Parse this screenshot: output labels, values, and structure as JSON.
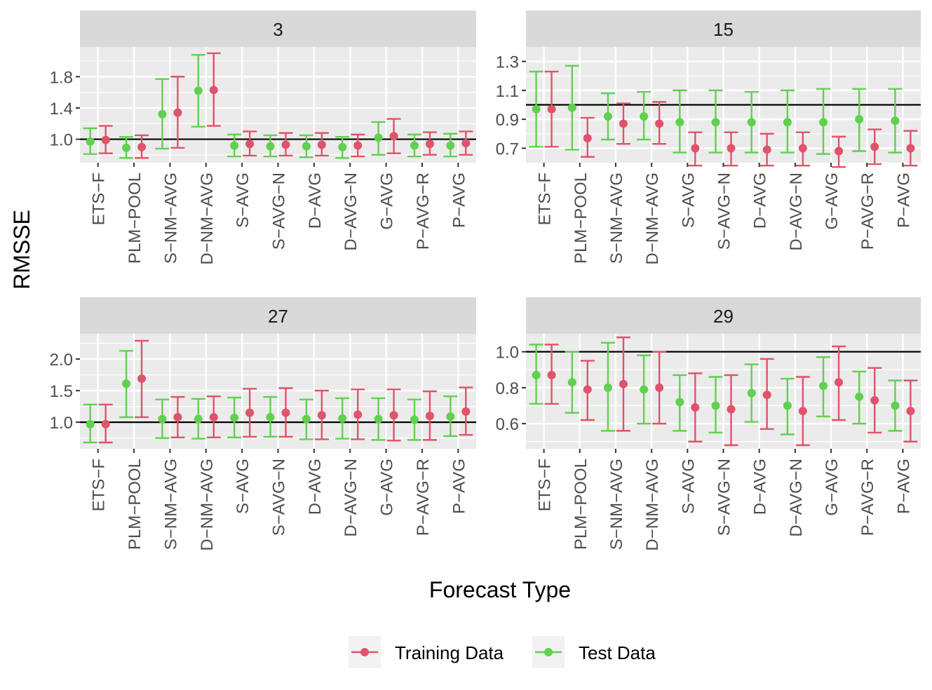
{
  "chart_data": {
    "type": "errorbar-facets",
    "ylabel": "RMSSE",
    "xlabel": "Forecast Type",
    "categories": [
      "ETS−F",
      "PLM−POOL",
      "S−NM−AVG",
      "D−NM−AVG",
      "S−AVG",
      "S−AVG−N",
      "D−AVG",
      "D−AVG−N",
      "G−AVG",
      "P−AVG−R",
      "P−AVG"
    ],
    "reference_line": 1.0,
    "legend": {
      "position": "bottom",
      "items": [
        {
          "key": "train",
          "label": "Training Data",
          "color": "#DF536B"
        },
        {
          "key": "test",
          "label": "Test Data",
          "color": "#61D04F"
        }
      ]
    },
    "facets": [
      {
        "title": "3",
        "ylim": [
          0.7,
          2.18
        ],
        "yticks": [
          1.0,
          1.4,
          1.8
        ],
        "ytick_labels": [
          "1.0",
          "1.4",
          "1.8"
        ],
        "test": [
          {
            "y": 0.97,
            "lo": 0.81,
            "hi": 1.14
          },
          {
            "y": 0.89,
            "lo": 0.76,
            "hi": 1.03
          },
          {
            "y": 1.32,
            "lo": 0.88,
            "hi": 1.77
          },
          {
            "y": 1.62,
            "lo": 1.16,
            "hi": 2.08
          },
          {
            "y": 0.92,
            "lo": 0.78,
            "hi": 1.06
          },
          {
            "y": 0.91,
            "lo": 0.78,
            "hi": 1.05
          },
          {
            "y": 0.91,
            "lo": 0.77,
            "hi": 1.05
          },
          {
            "y": 0.9,
            "lo": 0.76,
            "hi": 1.03
          },
          {
            "y": 1.02,
            "lo": 0.8,
            "hi": 1.22
          },
          {
            "y": 0.92,
            "lo": 0.78,
            "hi": 1.06
          },
          {
            "y": 0.92,
            "lo": 0.78,
            "hi": 1.07
          }
        ],
        "train": [
          {
            "y": 0.99,
            "lo": 0.82,
            "hi": 1.17
          },
          {
            "y": 0.9,
            "lo": 0.76,
            "hi": 1.05
          },
          {
            "y": 1.34,
            "lo": 0.89,
            "hi": 1.8
          },
          {
            "y": 1.63,
            "lo": 1.17,
            "hi": 2.1
          },
          {
            "y": 0.94,
            "lo": 0.79,
            "hi": 1.1
          },
          {
            "y": 0.93,
            "lo": 0.79,
            "hi": 1.08
          },
          {
            "y": 0.93,
            "lo": 0.79,
            "hi": 1.08
          },
          {
            "y": 0.92,
            "lo": 0.78,
            "hi": 1.06
          },
          {
            "y": 1.04,
            "lo": 0.82,
            "hi": 1.26
          },
          {
            "y": 0.94,
            "lo": 0.8,
            "hi": 1.09
          },
          {
            "y": 0.95,
            "lo": 0.8,
            "hi": 1.1
          }
        ]
      },
      {
        "title": "15",
        "ylim": [
          0.6,
          1.4
        ],
        "yticks": [
          0.7,
          0.9,
          1.1,
          1.3
        ],
        "ytick_labels": [
          "0.7",
          "0.9",
          "1.1",
          "1.3"
        ],
        "test": [
          {
            "y": 0.97,
            "lo": 0.71,
            "hi": 1.23
          },
          {
            "y": 0.98,
            "lo": 0.69,
            "hi": 1.27
          },
          {
            "y": 0.92,
            "lo": 0.76,
            "hi": 1.08
          },
          {
            "y": 0.92,
            "lo": 0.76,
            "hi": 1.09
          },
          {
            "y": 0.88,
            "lo": 0.67,
            "hi": 1.1
          },
          {
            "y": 0.88,
            "lo": 0.67,
            "hi": 1.1
          },
          {
            "y": 0.88,
            "lo": 0.67,
            "hi": 1.09
          },
          {
            "y": 0.88,
            "lo": 0.67,
            "hi": 1.1
          },
          {
            "y": 0.88,
            "lo": 0.66,
            "hi": 1.11
          },
          {
            "y": 0.9,
            "lo": 0.68,
            "hi": 1.11
          },
          {
            "y": 0.89,
            "lo": 0.67,
            "hi": 1.11
          }
        ],
        "train": [
          {
            "y": 0.97,
            "lo": 0.71,
            "hi": 1.23
          },
          {
            "y": 0.77,
            "lo": 0.64,
            "hi": 0.91
          },
          {
            "y": 0.87,
            "lo": 0.73,
            "hi": 1.01
          },
          {
            "y": 0.87,
            "lo": 0.73,
            "hi": 1.02
          },
          {
            "y": 0.7,
            "lo": 0.58,
            "hi": 0.81
          },
          {
            "y": 0.7,
            "lo": 0.58,
            "hi": 0.81
          },
          {
            "y": 0.69,
            "lo": 0.58,
            "hi": 0.8
          },
          {
            "y": 0.7,
            "lo": 0.58,
            "hi": 0.81
          },
          {
            "y": 0.68,
            "lo": 0.57,
            "hi": 0.78
          },
          {
            "y": 0.71,
            "lo": 0.59,
            "hi": 0.83
          },
          {
            "y": 0.7,
            "lo": 0.58,
            "hi": 0.82
          }
        ]
      },
      {
        "title": "27",
        "ylim": [
          0.58,
          2.4
        ],
        "yticks": [
          1.0,
          1.5,
          2.0
        ],
        "ytick_labels": [
          "1.0",
          "1.5",
          "2.0"
        ],
        "test": [
          {
            "y": 0.97,
            "lo": 0.68,
            "hi": 1.28
          },
          {
            "y": 1.61,
            "lo": 1.08,
            "hi": 2.13
          },
          {
            "y": 1.05,
            "lo": 0.75,
            "hi": 1.36
          },
          {
            "y": 1.05,
            "lo": 0.74,
            "hi": 1.37
          },
          {
            "y": 1.07,
            "lo": 0.76,
            "hi": 1.39
          },
          {
            "y": 1.08,
            "lo": 0.77,
            "hi": 1.4
          },
          {
            "y": 1.05,
            "lo": 0.73,
            "hi": 1.36
          },
          {
            "y": 1.06,
            "lo": 0.74,
            "hi": 1.38
          },
          {
            "y": 1.05,
            "lo": 0.72,
            "hi": 1.38
          },
          {
            "y": 1.04,
            "lo": 0.72,
            "hi": 1.36
          },
          {
            "y": 1.09,
            "lo": 0.78,
            "hi": 1.41
          }
        ],
        "train": [
          {
            "y": 0.97,
            "lo": 0.68,
            "hi": 1.28
          },
          {
            "y": 1.69,
            "lo": 1.08,
            "hi": 2.29
          },
          {
            "y": 1.08,
            "lo": 0.76,
            "hi": 1.4
          },
          {
            "y": 1.08,
            "lo": 0.76,
            "hi": 1.41
          },
          {
            "y": 1.15,
            "lo": 0.77,
            "hi": 1.53
          },
          {
            "y": 1.15,
            "lo": 0.77,
            "hi": 1.54
          },
          {
            "y": 1.11,
            "lo": 0.73,
            "hi": 1.5
          },
          {
            "y": 1.12,
            "lo": 0.73,
            "hi": 1.52
          },
          {
            "y": 1.11,
            "lo": 0.71,
            "hi": 1.52
          },
          {
            "y": 1.1,
            "lo": 0.72,
            "hi": 1.49
          },
          {
            "y": 1.17,
            "lo": 0.8,
            "hi": 1.55
          }
        ]
      },
      {
        "title": "29",
        "ylim": [
          0.46,
          1.1
        ],
        "yticks": [
          0.6,
          0.8,
          1.0
        ],
        "ytick_labels": [
          "0.6",
          "0.8",
          "1.0"
        ],
        "test": [
          {
            "y": 0.87,
            "lo": 0.71,
            "hi": 1.04
          },
          {
            "y": 0.83,
            "lo": 0.66,
            "hi": 1.0
          },
          {
            "y": 0.8,
            "lo": 0.56,
            "hi": 1.05
          },
          {
            "y": 0.79,
            "lo": 0.6,
            "hi": 0.98
          },
          {
            "y": 0.72,
            "lo": 0.56,
            "hi": 0.87
          },
          {
            "y": 0.7,
            "lo": 0.55,
            "hi": 0.86
          },
          {
            "y": 0.77,
            "lo": 0.61,
            "hi": 0.93
          },
          {
            "y": 0.7,
            "lo": 0.54,
            "hi": 0.85
          },
          {
            "y": 0.81,
            "lo": 0.64,
            "hi": 0.97
          },
          {
            "y": 0.75,
            "lo": 0.6,
            "hi": 0.89
          },
          {
            "y": 0.7,
            "lo": 0.56,
            "hi": 0.84
          }
        ],
        "train": [
          {
            "y": 0.87,
            "lo": 0.71,
            "hi": 1.04
          },
          {
            "y": 0.79,
            "lo": 0.62,
            "hi": 0.95
          },
          {
            "y": 0.82,
            "lo": 0.56,
            "hi": 1.08
          },
          {
            "y": 0.8,
            "lo": 0.6,
            "hi": 1.0
          },
          {
            "y": 0.69,
            "lo": 0.5,
            "hi": 0.88
          },
          {
            "y": 0.68,
            "lo": 0.48,
            "hi": 0.87
          },
          {
            "y": 0.76,
            "lo": 0.57,
            "hi": 0.96
          },
          {
            "y": 0.67,
            "lo": 0.48,
            "hi": 0.86
          },
          {
            "y": 0.83,
            "lo": 0.62,
            "hi": 1.03
          },
          {
            "y": 0.73,
            "lo": 0.55,
            "hi": 0.91
          },
          {
            "y": 0.67,
            "lo": 0.5,
            "hi": 0.84
          }
        ]
      }
    ]
  }
}
